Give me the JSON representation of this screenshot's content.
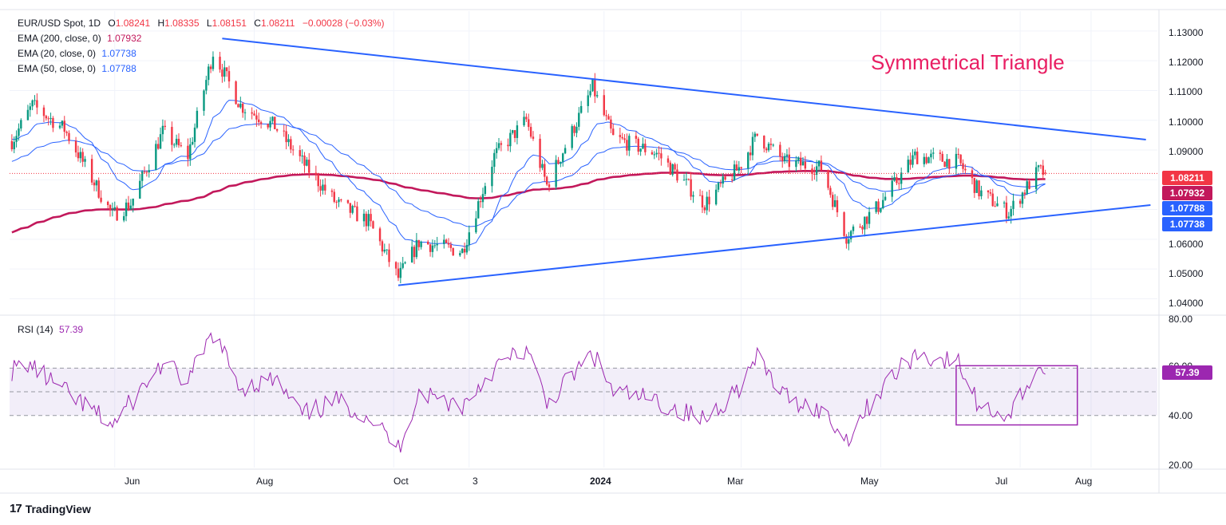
{
  "header": {
    "symbol": "EUR/USD Spot, 1D",
    "ohlc": [
      {
        "k": "O",
        "v": "1.08241"
      },
      {
        "k": "H",
        "v": "1.08335"
      },
      {
        "k": "L",
        "v": "1.08151"
      },
      {
        "k": "C",
        "v": "1.08211"
      }
    ],
    "change": "−0.00028 (−0.03%)",
    "indicators": [
      {
        "label": "EMA (200, close, 0)",
        "value": "1.07932",
        "color": "#c2185b"
      },
      {
        "label": "EMA (20, close, 0)",
        "value": "1.07738",
        "color": "#2962ff"
      },
      {
        "label": "EMA (50, close, 0)",
        "value": "1.07788",
        "color": "#2962ff"
      }
    ]
  },
  "annotation": {
    "text": "Symmetrical Triangle",
    "color": "#e91e63"
  },
  "price_axis": {
    "ticks": [
      "1.13000",
      "1.12000",
      "1.11000",
      "1.10000",
      "1.09000",
      "1.08000",
      "1.07000",
      "1.06000",
      "1.05000",
      "1.04000"
    ],
    "tags": [
      {
        "text": "1.08211",
        "color": "#f23645"
      },
      {
        "text": "1.07932",
        "color": "#c2185b"
      },
      {
        "text": "1.07788",
        "color": "#2962ff"
      },
      {
        "text": "1.07738",
        "color": "#2962ff"
      }
    ]
  },
  "rsi": {
    "label": "RSI (14)",
    "value": "57.39",
    "color": "#9c27b0",
    "ticks": [
      "80.00",
      "60.00",
      "40.00",
      "20.00"
    ]
  },
  "time_axis": {
    "labels": [
      "Jun",
      "Aug",
      "Oct",
      "3",
      "2024",
      "Mar",
      "May",
      "Jul",
      "Aug"
    ]
  },
  "branding": {
    "text": "TradingView",
    "icon": "tradingview-logo-icon"
  },
  "chart_data": {
    "type": "candlestick",
    "title": "EUR/USD Spot, 1D",
    "ylim": [
      1.035,
      1.134
    ],
    "rsi_ylim": [
      18,
      82
    ],
    "rsi_levels": [
      60,
      50,
      40
    ],
    "last_close": 1.08211,
    "candle_up_color": "#089981",
    "candle_down_color": "#f23645",
    "trendlines": [
      {
        "name": "upper",
        "from": [
          "2023-07-18",
          1.1275
        ],
        "to": [
          "2024-08-25",
          1.0935
        ],
        "color": "#2962ff"
      },
      {
        "name": "lower",
        "from": [
          "2023-10-03",
          1.0445
        ],
        "to": [
          "2024-08-27",
          1.0715
        ],
        "color": "#2962ff"
      }
    ],
    "price_path": [
      [
        "2023-04-17",
        1.093
      ],
      [
        "2023-04-26",
        1.105
      ],
      [
        "2023-05-10",
        1.097
      ],
      [
        "2023-05-31",
        1.068
      ],
      [
        "2023-06-08",
        1.072
      ],
      [
        "2023-06-22",
        1.096
      ],
      [
        "2023-07-03",
        1.088
      ],
      [
        "2023-07-14",
        1.123
      ],
      [
        "2023-07-26",
        1.105
      ],
      [
        "2023-08-10",
        1.098
      ],
      [
        "2023-08-22",
        1.086
      ],
      [
        "2023-09-06",
        1.072
      ],
      [
        "2023-09-20",
        1.066
      ],
      [
        "2023-10-03",
        1.047
      ],
      [
        "2023-10-12",
        1.059
      ],
      [
        "2023-10-31",
        1.056
      ],
      [
        "2023-11-14",
        1.088
      ],
      [
        "2023-11-28",
        1.1
      ],
      [
        "2023-12-07",
        1.078
      ],
      [
        "2023-12-27",
        1.111
      ],
      [
        "2024-01-05",
        1.094
      ],
      [
        "2024-01-24",
        1.089
      ],
      [
        "2024-02-14",
        1.072
      ],
      [
        "2024-02-29",
        1.084
      ],
      [
        "2024-03-08",
        1.095
      ],
      [
        "2024-03-20",
        1.086
      ],
      [
        "2024-04-05",
        1.084
      ],
      [
        "2024-04-16",
        1.061
      ],
      [
        "2024-04-30",
        1.071
      ],
      [
        "2024-05-16",
        1.088
      ],
      [
        "2024-06-04",
        1.086
      ],
      [
        "2024-06-13",
        1.076
      ],
      [
        "2024-06-26",
        1.069
      ],
      [
        "2024-07-09",
        1.083
      ],
      [
        "2024-07-12",
        1.0821
      ]
    ],
    "rsi_path": [
      [
        "2023-04-17",
        59
      ],
      [
        "2023-04-24",
        62
      ],
      [
        "2023-05-10",
        50
      ],
      [
        "2023-05-31",
        36
      ],
      [
        "2023-06-22",
        62
      ],
      [
        "2023-07-03",
        54
      ],
      [
        "2023-07-14",
        75
      ],
      [
        "2023-07-26",
        52
      ],
      [
        "2023-08-10",
        55
      ],
      [
        "2023-08-22",
        40
      ],
      [
        "2023-09-06",
        46
      ],
      [
        "2023-09-20",
        40
      ],
      [
        "2023-10-03",
        26
      ],
      [
        "2023-10-12",
        50
      ],
      [
        "2023-10-31",
        44
      ],
      [
        "2023-11-14",
        60
      ],
      [
        "2023-11-28",
        68
      ],
      [
        "2023-12-07",
        45
      ],
      [
        "2023-12-27",
        66
      ],
      [
        "2024-01-05",
        50
      ],
      [
        "2024-01-24",
        46
      ],
      [
        "2024-02-14",
        38
      ],
      [
        "2024-02-29",
        52
      ],
      [
        "2024-03-08",
        64
      ],
      [
        "2024-03-20",
        48
      ],
      [
        "2024-04-05",
        42
      ],
      [
        "2024-04-16",
        30
      ],
      [
        "2024-04-30",
        50
      ],
      [
        "2024-05-16",
        66
      ],
      [
        "2024-06-04",
        62
      ],
      [
        "2024-06-13",
        44
      ],
      [
        "2024-06-26",
        40
      ],
      [
        "2024-07-09",
        61
      ],
      [
        "2024-07-12",
        57.39
      ]
    ],
    "rsi_highlight_box": {
      "from": [
        "2024-06-03",
        36
      ],
      "to": [
        "2024-07-26",
        61
      ]
    }
  }
}
